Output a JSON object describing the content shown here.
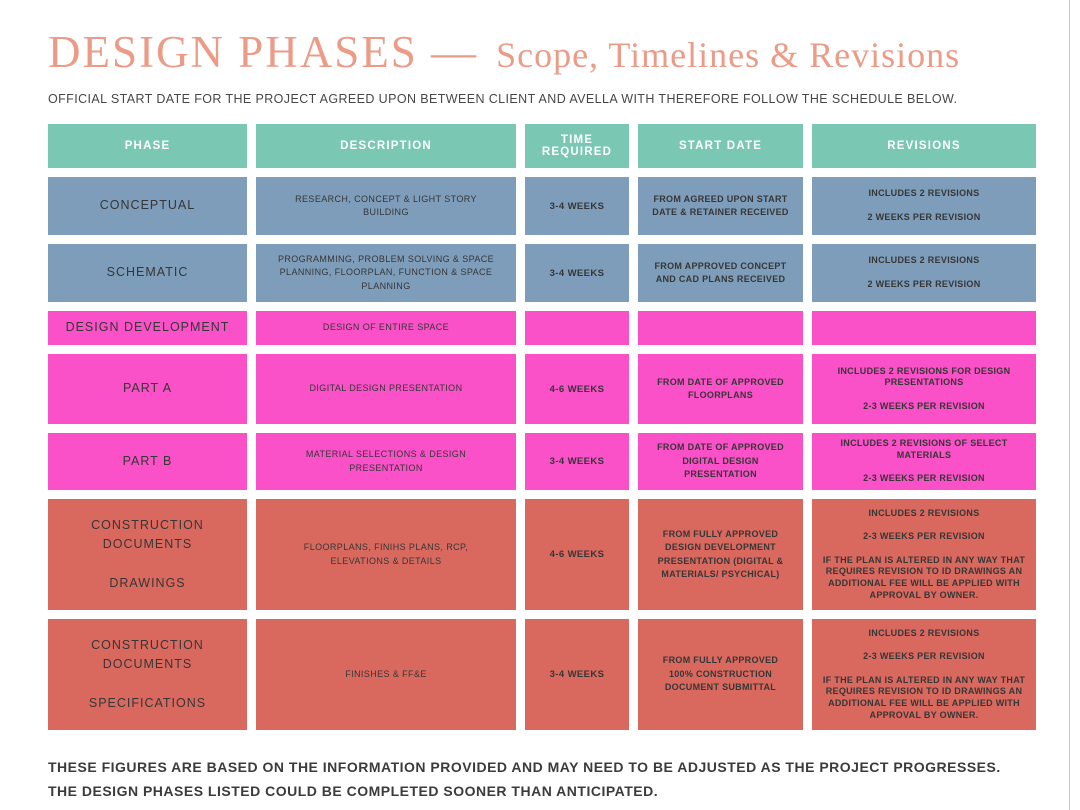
{
  "header": {
    "title_main": "DESIGN PHASES —",
    "title_sub": "Scope, Timelines & Revisions",
    "subtitle": "OFFICIAL START DATE FOR THE PROJECT AGREED UPON BETWEEN CLIENT AND AVELLA WITH THEREFORE FOLLOW THE SCHEDULE BELOW."
  },
  "colors": {
    "title_salmon": "#ec9b87",
    "header_teal": "#7ac7b3",
    "row_blue": "#7e9dba",
    "row_pink": "#fa50c8",
    "row_salmon": "#d9695e",
    "text_dark": "#363636"
  },
  "table": {
    "headers": [
      "PHASE",
      "DESCRIPTION",
      "TIME REQUIRED",
      "START DATE",
      "REVISIONS"
    ],
    "rows": [
      {
        "phase": "CONCEPTUAL",
        "description": "RESEARCH, CONCEPT & LIGHT STORY BUILDING",
        "time": "3-4 WEEKS",
        "start": "FROM AGREED UPON START DATE & RETAINER RECEIVED",
        "revisions": "INCLUDES 2 REVISIONS\n\n2 WEEKS PER REVISION",
        "color": "blue"
      },
      {
        "phase": "SCHEMATIC",
        "description": "PROGRAMMING, PROBLEM SOLVING & SPACE PLANNING, FLOORPLAN, FUNCTION & SPACE PLANNING",
        "time": "3-4 WEEKS",
        "start": "FROM APPROVED CONCEPT AND CAD PLANS RECEIVED",
        "revisions": "INCLUDES 2 REVISIONS\n\n2 WEEKS PER REVISION",
        "color": "blue"
      },
      {
        "phase": "DESIGN DEVELOPMENT",
        "description": "DESIGN OF ENTIRE SPACE",
        "time": "",
        "start": "",
        "revisions": "",
        "color": "pink"
      },
      {
        "phase": "PART A",
        "description": "DIGITAL DESIGN PRESENTATION",
        "time": "4-6 WEEKS",
        "start": "FROM DATE OF APPROVED FLOORPLANS",
        "revisions": "INCLUDES 2  REVISIONS FOR DESIGN PRESENTATIONS\n\n2-3 WEEKS PER REVISION",
        "color": "pink"
      },
      {
        "phase": "PART B",
        "description": "MATERIAL SELECTIONS & DESIGN PRESENTATION",
        "time": "3-4 WEEKS",
        "start": "FROM DATE OF APPROVED DIGITAL DESIGN PRESENTATION",
        "revisions": "INCLUDES 2 REVISIONS  OF SELECT MATERIALS\n\n2-3 WEEKS PER REVISION",
        "color": "pink"
      },
      {
        "phase": "CONSTRUCTION\nDOCUMENTS\n\nDRAWINGS",
        "description": "FLOORPLANS, FINIHS PLANS, RCP, ELEVATIONS & DETAILS",
        "time": "4-6 WEEKS",
        "start": "FROM FULLY APPROVED DESIGN DEVELOPMENT PRESENTATION (DIGITAL & MATERIALS/ PSYCHICAL)",
        "revisions": "INCLUDES 2 REVISIONS\n\n2-3 WEEKS PER REVISION\n\nIF THE PLAN IS ALTERED IN ANY WAY THAT REQUIRES REVISION TO ID DRAWINGS AN ADDITIONAL FEE WILL BE APPLIED WITH APPROVAL BY OWNER.",
        "color": "salmon"
      },
      {
        "phase": "CONSTRUCTION\nDOCUMENTS\n\nSPECIFICATIONS",
        "description": "FINISHES & FF&E",
        "time": "3-4 WEEKS",
        "start": "FROM FULLY APPROVED 100% CONSTRUCTION DOCUMENT SUBMITTAL",
        "revisions": "INCLUDES 2 REVISIONS\n\n2-3 WEEKS PER REVISION\n\nIF THE PLAN IS ALTERED IN ANY WAY THAT REQUIRES REVISION TO ID DRAWINGS AN ADDITIONAL FEE WILL BE APPLIED WITH APPROVAL BY OWNER.",
        "color": "salmon"
      }
    ]
  },
  "footer": {
    "line1": "THESE FIGURES ARE BASED ON THE INFORMATION PROVIDED AND MAY NEED TO BE ADJUSTED AS THE PROJECT PROGRESSES.",
    "line2": "THE DESIGN PHASES LISTED COULD BE COMPLETED SOONER THAN ANTICIPATED."
  }
}
